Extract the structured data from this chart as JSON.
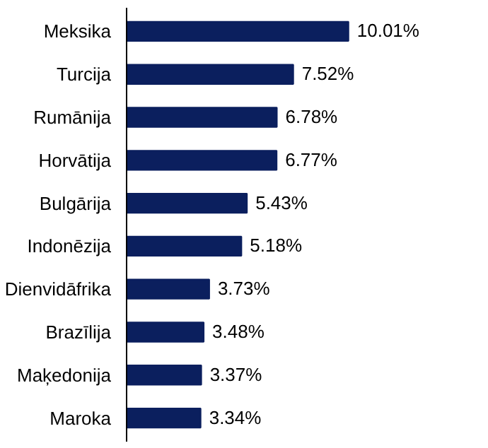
{
  "chart_data": {
    "type": "bar",
    "orientation": "horizontal",
    "categories": [
      "Meksika",
      "Turcija",
      "Rumānija",
      "Horvātija",
      "Bulgārija",
      "Indonēzija",
      "Dienvidāfrika",
      "Brazīlija",
      "Maķedonija",
      "Maroka"
    ],
    "values": [
      10.01,
      7.52,
      6.78,
      6.77,
      5.43,
      5.18,
      3.73,
      3.48,
      3.37,
      3.34
    ],
    "value_labels": [
      "10.01%",
      "7.52%",
      "6.78%",
      "6.77%",
      "5.43%",
      "5.18%",
      "3.73%",
      "3.48%",
      "3.37%",
      "3.34%"
    ],
    "color": "#0b1f5e"
  }
}
